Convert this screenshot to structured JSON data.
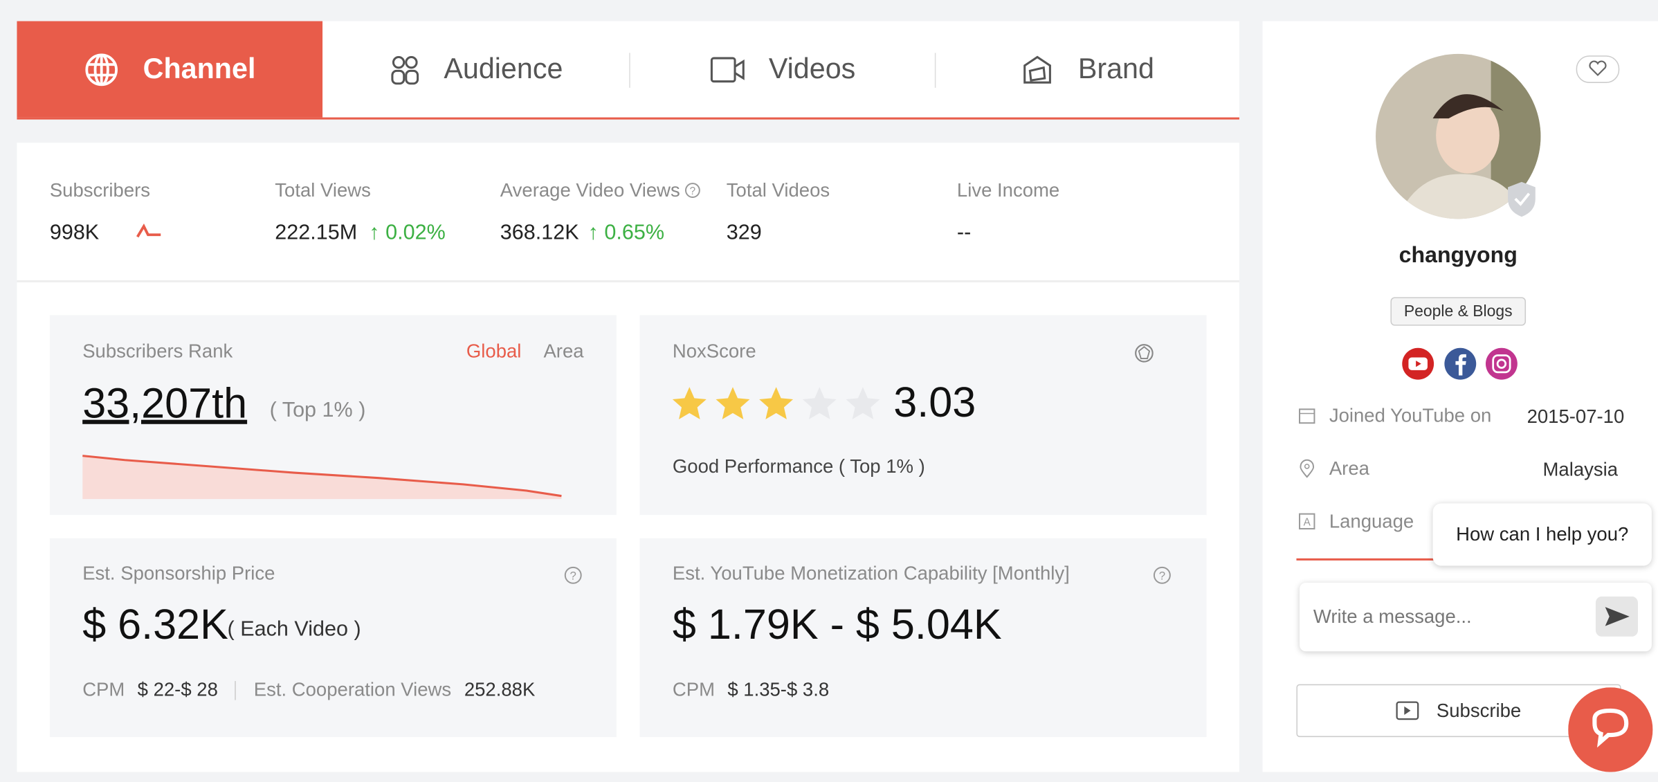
{
  "tabs": [
    "Channel",
    "Audience",
    "Videos",
    "Brand"
  ],
  "stats": [
    {
      "label": "Subscribers",
      "value": "998K"
    },
    {
      "label": "Total Views",
      "value": "222.15M",
      "change": "0.02%"
    },
    {
      "label": "Average Video Views",
      "value": "368.12K",
      "change": "0.65%"
    },
    {
      "label": "Total Videos",
      "value": "329"
    },
    {
      "label": "Live Income",
      "value": "--"
    }
  ],
  "rank": {
    "title": "Subscribers Rank",
    "options": [
      "Global",
      "Area"
    ],
    "value": "33,207th",
    "note": "( Top 1% )"
  },
  "noxscore": {
    "title": "NoxScore",
    "score": "3.03",
    "note": "Good Performance ( Top 1% )"
  },
  "sponsorship": {
    "title": "Est. Sponsorship Price",
    "value": "$ 6.32K",
    "unit": "( Each Video )",
    "cpm_label": "CPM",
    "cpm": "$ 22-$ 28",
    "views_label": "Est. Cooperation Views",
    "views": "252.88K"
  },
  "monetization": {
    "title": "Est. YouTube Monetization Capability [Monthly]",
    "value": "$ 1.79K - $ 5.04K",
    "cpm_label": "CPM",
    "cpm": "$ 1.35-$ 3.8"
  },
  "profile": {
    "name": "changyong",
    "category": "People & Blogs",
    "details": [
      {
        "label": "Joined YouTube on",
        "value": "2015-07-10"
      },
      {
        "label": "Area",
        "value": "Malaysia"
      },
      {
        "label": "Language"
      }
    ],
    "subscribe": "Subscribe"
  },
  "chat": {
    "greeting": "How can I help you?",
    "placeholder": "Write a message..."
  }
}
